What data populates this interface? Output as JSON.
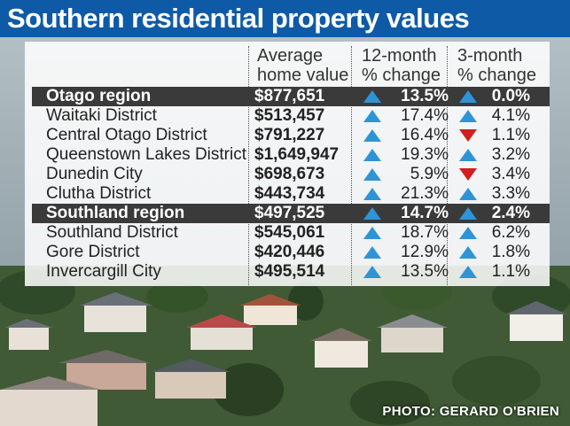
{
  "title": "Southern residential property values",
  "headers": {
    "avg_line1": "Average",
    "avg_line2": "home value",
    "m12_line1": "12-month",
    "m12_line2": "% change",
    "m3_line1": "3-month",
    "m3_line2": "% change"
  },
  "credit": "PHOTO: GERARD O'BRIEN",
  "colors": {
    "title_bar": "#0e5aa7",
    "up_arrow": "#2f94d6",
    "down_arrow": "#d21e1e",
    "region_row": "#3a3a3a"
  },
  "chart_data": {
    "type": "table",
    "title": "Southern residential property values",
    "columns": [
      "",
      "Average home value",
      "12-month % change",
      "3-month % change"
    ],
    "rows": [
      {
        "name": "Otago region",
        "region": true,
        "value": "$877,651",
        "change_12m": "13.5%",
        "dir_12m": "up",
        "change_3m": "0.0%",
        "dir_3m": "up"
      },
      {
        "name": "Waitaki District",
        "region": false,
        "value": "$513,457",
        "change_12m": "17.4%",
        "dir_12m": "up",
        "change_3m": "4.1%",
        "dir_3m": "up"
      },
      {
        "name": "Central Otago District",
        "region": false,
        "value": "$791,227",
        "change_12m": "16.4%",
        "dir_12m": "up",
        "change_3m": "1.1%",
        "dir_3m": "down"
      },
      {
        "name": "Queenstown Lakes District",
        "region": false,
        "value": "$1,649,947",
        "change_12m": "19.3%",
        "dir_12m": "up",
        "change_3m": "3.2%",
        "dir_3m": "up"
      },
      {
        "name": "Dunedin City",
        "region": false,
        "value": "$698,673",
        "change_12m": "5.9%",
        "dir_12m": "up",
        "change_3m": "3.4%",
        "dir_3m": "down"
      },
      {
        "name": "Clutha District",
        "region": false,
        "value": "$443,734",
        "change_12m": "21.3%",
        "dir_12m": "up",
        "change_3m": "3.3%",
        "dir_3m": "up"
      },
      {
        "name": "Southland region",
        "region": true,
        "value": "$497,525",
        "change_12m": "14.7%",
        "dir_12m": "up",
        "change_3m": "2.4%",
        "dir_3m": "up"
      },
      {
        "name": "Southland District",
        "region": false,
        "value": "$545,061",
        "change_12m": "18.7%",
        "dir_12m": "up",
        "change_3m": "6.2%",
        "dir_3m": "up"
      },
      {
        "name": "Gore District",
        "region": false,
        "value": "$420,446",
        "change_12m": "12.9%",
        "dir_12m": "up",
        "change_3m": "1.8%",
        "dir_3m": "up"
      },
      {
        "name": "Invercargill City",
        "region": false,
        "value": "$495,514",
        "change_12m": "13.5%",
        "dir_12m": "up",
        "change_3m": "1.1%",
        "dir_3m": "up"
      }
    ]
  }
}
